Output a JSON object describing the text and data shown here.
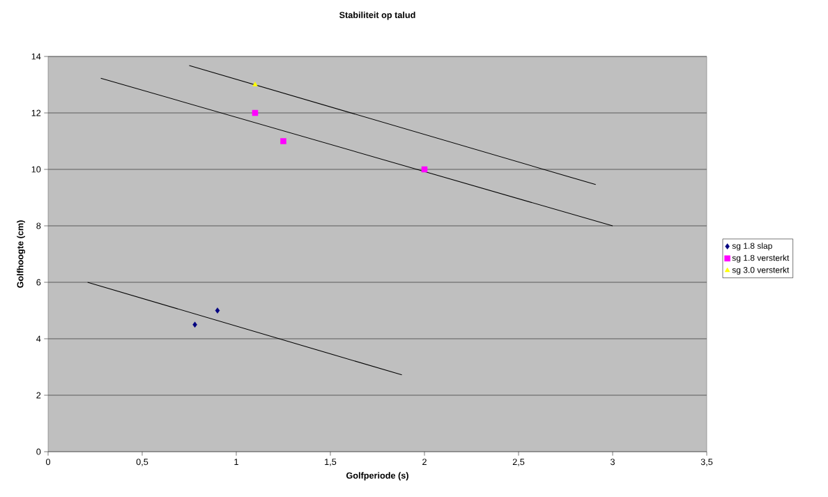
{
  "chart_data": {
    "type": "scatter",
    "title": "Stabiliteit op talud",
    "xlabel": "Golfperiode (s)",
    "ylabel": "Golfhoogte (cm)",
    "xlim": [
      0,
      3.5
    ],
    "ylim": [
      0,
      14
    ],
    "xticks": [
      0,
      {
        "value": 0.5,
        "label": "0,5"
      },
      1,
      {
        "value": 1.5,
        "label": "1,5"
      },
      2,
      {
        "value": 2.5,
        "label": "2,5"
      },
      3,
      {
        "value": 3.5,
        "label": "3,5"
      }
    ],
    "yticks": [
      0,
      2,
      4,
      6,
      8,
      10,
      12,
      14
    ],
    "grid": "y",
    "legend": "right",
    "series": [
      {
        "name": "sg 1.8 slap",
        "color": "#000080",
        "marker": "diamond",
        "x": [
          0.78,
          0.9
        ],
        "values": [
          4.5,
          5.0
        ]
      },
      {
        "name": "sg 1.8 versterkt",
        "color": "#ff00ff",
        "marker": "square",
        "x": [
          1.1,
          1.25,
          2.0
        ],
        "values": [
          12,
          11,
          10
        ]
      },
      {
        "name": "sg 3.0 versterkt",
        "color": "#ffff00",
        "marker": "triangle",
        "x": [
          1.1
        ],
        "values": [
          13
        ]
      },
      {
        "type": "line",
        "color": "#000000",
        "marker": "none",
        "x": [
          0.21,
          1.88
        ],
        "values": [
          6.0,
          2.72
        ]
      },
      {
        "type": "line",
        "color": "#000000",
        "marker": "none",
        "x": [
          0.28,
          3.0
        ],
        "values": [
          13.23,
          8.0
        ]
      },
      {
        "type": "line",
        "color": "#000000",
        "marker": "none",
        "x": [
          0.75,
          2.91
        ],
        "values": [
          13.68,
          9.46
        ]
      }
    ]
  }
}
